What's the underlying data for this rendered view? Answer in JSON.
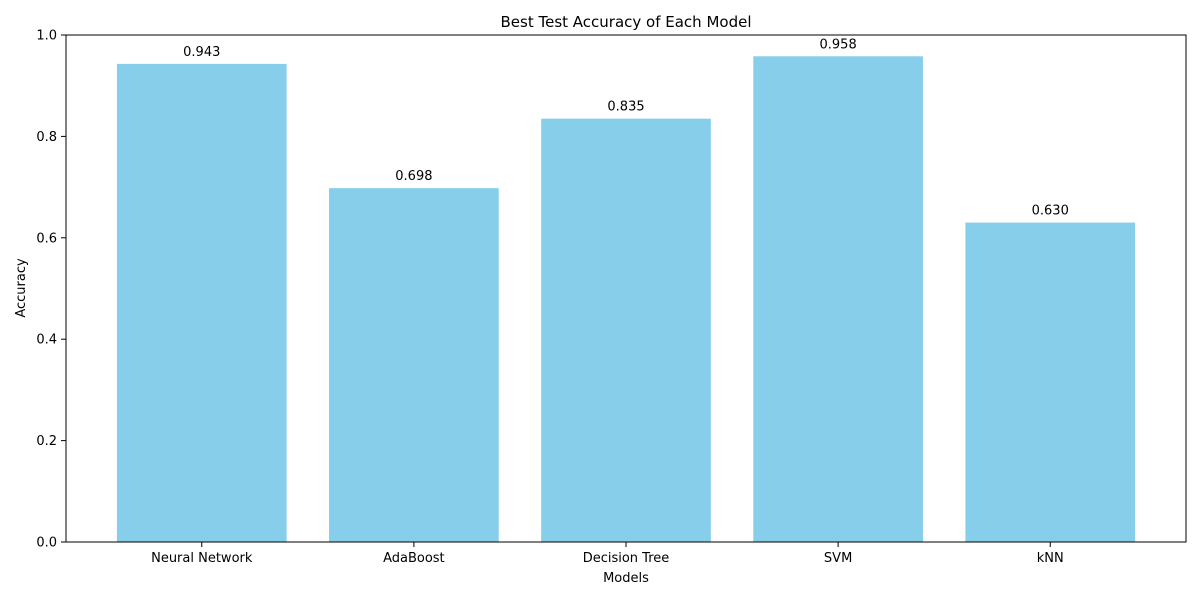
{
  "chart_data": {
    "type": "bar",
    "title": "Best Test Accuracy of Each Model",
    "xlabel": "Models",
    "ylabel": "Accuracy",
    "categories": [
      "Neural Network",
      "AdaBoost",
      "Decision Tree",
      "SVM",
      "kNN"
    ],
    "values": [
      0.943,
      0.698,
      0.835,
      0.958,
      0.63
    ],
    "value_labels": [
      "0.943",
      "0.698",
      "0.835",
      "0.958",
      "0.630"
    ],
    "ylim": [
      0.0,
      1.0
    ],
    "yticks": [
      0.0,
      0.2,
      0.4,
      0.6,
      0.8,
      1.0
    ],
    "ytick_labels": [
      "0.0",
      "0.2",
      "0.4",
      "0.6",
      "0.8",
      "1.0"
    ],
    "grid": false,
    "legend": "none",
    "bar_color": "#87CEEB",
    "axis_color": "#000000"
  }
}
